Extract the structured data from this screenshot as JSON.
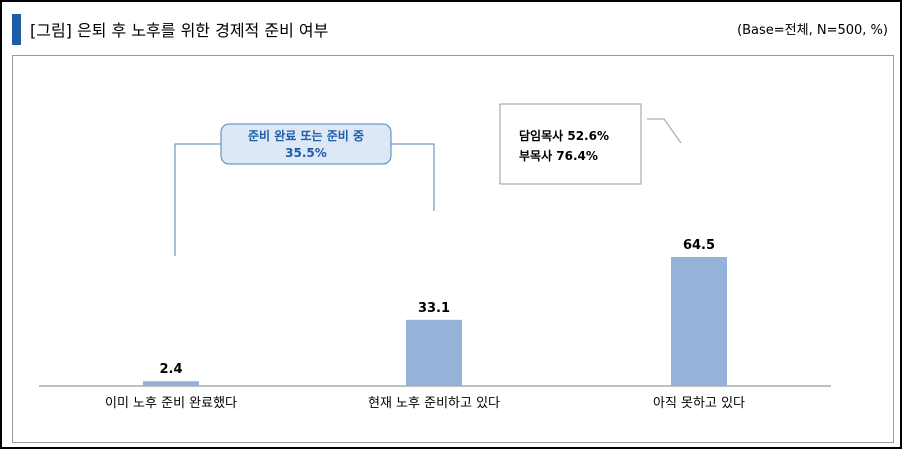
{
  "header": {
    "title": "[그림] 은퇴 후 노후를 위한 경제적 준비 여부",
    "base_note": "(Base=전체,  N=500,  %)"
  },
  "colors": {
    "accent": "#1f5da8",
    "bar": "#95b2d8",
    "bracket_line": "#4f81bd",
    "bracket_box_fill": "#dce8f6"
  },
  "bracket": {
    "line1": "준비 완료 또는 준비 중",
    "line2": "35.5%"
  },
  "callout": {
    "line1": "담임목사 52.6%",
    "line2": "부목사 76.4%"
  },
  "chart_data": {
    "type": "bar",
    "categories": [
      "이미 노후 준비 완료했다",
      "현재 노후 준비하고 있다",
      "아직 못하고 있다"
    ],
    "values": [
      2.4,
      33.1,
      64.5
    ],
    "value_labels": [
      "2.4",
      "33.1",
      "64.5"
    ],
    "title": "[그림] 은퇴 후 노후를 위한 경제적 준비 여부",
    "xlabel": "",
    "ylabel": "",
    "ylim": [
      0,
      100
    ],
    "grid": false,
    "legend": "none"
  }
}
